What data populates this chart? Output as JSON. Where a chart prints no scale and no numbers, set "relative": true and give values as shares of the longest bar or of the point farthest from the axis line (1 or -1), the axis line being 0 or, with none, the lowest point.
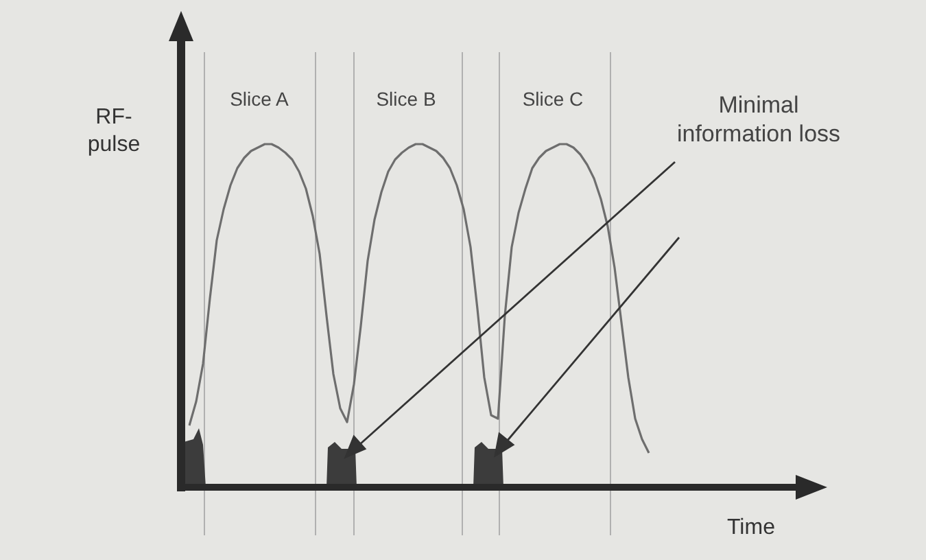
{
  "chart_data": {
    "type": "line",
    "relative": true,
    "xlabel": "Time",
    "ylabel": "RF-pulse",
    "legend": false,
    "marker": "none",
    "line_style": "solid",
    "categories": [
      null,
      null,
      null,
      null,
      null,
      null,
      null,
      null,
      null,
      null,
      null,
      null,
      null,
      null,
      null,
      null,
      null,
      null,
      null,
      null,
      null,
      null,
      null,
      null,
      null,
      null,
      null,
      null,
      null,
      null,
      null,
      null,
      null,
      null,
      null,
      null,
      null,
      null,
      null,
      null,
      null,
      null,
      null,
      null,
      null,
      null,
      null,
      null,
      null,
      null,
      null,
      null,
      null,
      null,
      null,
      null,
      null,
      null,
      null,
      null,
      null,
      null,
      null,
      null,
      null,
      null,
      null,
      null,
      null,
      null,
      null,
      null,
      null,
      null,
      null,
      null,
      null,
      null,
      null,
      null,
      null,
      null,
      null,
      null,
      null,
      null,
      null,
      null,
      null,
      null,
      null,
      null
    ],
    "series": [
      {
        "color": "#6e6e6e",
        "values": [
          0.18,
          0.25,
          0.36,
          0.55,
          0.72,
          0.81,
          0.88,
          0.93,
          0.96,
          0.98,
          0.99,
          1,
          1,
          0.99,
          0.975,
          0.955,
          0.92,
          0.87,
          0.79,
          0.68,
          0.5,
          0.33,
          0.23,
          0.19,
          0.3,
          0.47,
          0.66,
          0.78,
          0.86,
          0.92,
          0.955,
          0.975,
          0.99,
          1,
          1,
          0.99,
          0.98,
          0.96,
          0.93,
          0.88,
          0.81,
          0.7,
          0.52,
          0.32,
          0.21,
          0.2,
          0.5,
          0.7,
          0.8,
          0.87,
          0.93,
          0.96,
          0.98,
          0.99,
          1,
          1,
          0.99,
          0.97,
          0.94,
          0.9,
          0.84,
          0.76,
          0.64,
          0.48,
          0.32,
          0.2,
          0.14,
          0.1,
          null,
          null,
          null,
          null,
          null,
          null,
          null,
          null,
          null,
          null,
          null,
          null,
          null,
          null,
          null,
          null,
          null,
          null,
          null,
          null,
          null,
          null,
          null,
          null
        ]
      }
    ],
    "annotations": [
      "Slice A",
      "Slice B",
      "Slice C",
      "Minimal information loss"
    ]
  }
}
